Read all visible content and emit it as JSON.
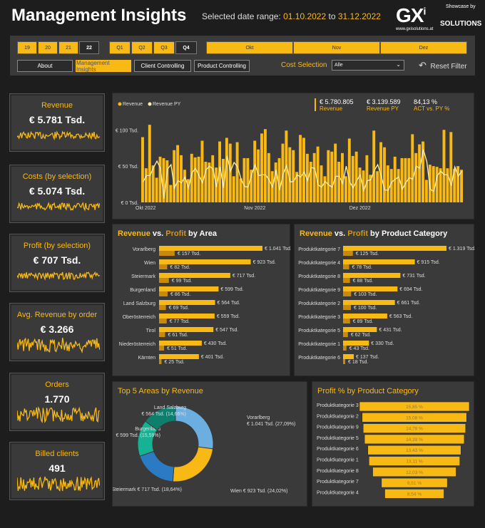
{
  "header": {
    "title": "Management Insights",
    "range_label": "Selected date range:",
    "range_from": "01.10.2022",
    "range_to_label": "to",
    "range_to": "31.12.2022",
    "logo_text": "GXi SOLUTIONS",
    "logo_showcase": "Showcase by",
    "logo_url": "www.gxisolutions.at"
  },
  "filters": {
    "years": [
      {
        "label": "19",
        "selected": false
      },
      {
        "label": "20",
        "selected": false
      },
      {
        "label": "21",
        "selected": false
      },
      {
        "label": "22",
        "selected": true
      }
    ],
    "quarters": [
      {
        "label": "Q1",
        "selected": false
      },
      {
        "label": "Q2",
        "selected": false
      },
      {
        "label": "Q3",
        "selected": false
      },
      {
        "label": "Q4",
        "selected": true
      }
    ],
    "months": [
      "Okt",
      "Nov",
      "Dez"
    ],
    "nav": [
      {
        "label": "About",
        "active": false
      },
      {
        "label": "Management Insights",
        "active": true
      },
      {
        "label": "Client Controlling",
        "active": false
      },
      {
        "label": "Product Controlling",
        "active": false
      }
    ],
    "cost_label": "Cost Selection",
    "cost_value": "Alle",
    "reset": "Reset Filter"
  },
  "kpis": [
    {
      "label": "Revenue",
      "value": "€ 5.781 Tsd."
    },
    {
      "label": "Costs (by selection)",
      "value": "€ 5.074 Tsd."
    },
    {
      "label": "Profit (by selection)",
      "value": "€ 707 Tsd."
    },
    {
      "label": "Avg. Revenue by order",
      "value": "€ 3.266"
    },
    {
      "label": "Orders",
      "value": "1.770"
    },
    {
      "label": "Billed clients",
      "value": "491"
    }
  ],
  "colors": {
    "accent": "#f9b915",
    "profit": "#c98a0c",
    "py_line": "#fff0b0",
    "panel": "#3a3a3a"
  },
  "chart_data": [
    {
      "type": "bar",
      "legend": [
        "Revenue",
        "Revenue PY"
      ],
      "kpis": [
        {
          "value": "€ 5.780.805",
          "label": "Revenue"
        },
        {
          "value": "€ 3.139.589",
          "label": "Revenue PY"
        },
        {
          "value": "84,13 %",
          "label": "ACT vs. PY %"
        }
      ],
      "y_ticks": [
        "€ 0 Tsd.",
        "€ 50 Tsd.",
        "€ 100 Tsd."
      ],
      "ylim": [
        0,
        115
      ],
      "x_ticks": [
        "Okt 2022",
        "Nov 2022",
        "Dez 2022"
      ],
      "series": [
        {
          "name": "Revenue",
          "values": [
            90,
            47,
            107,
            51,
            34,
            63,
            61,
            58,
            24,
            72,
            79,
            65,
            45,
            32,
            67,
            62,
            63,
            85,
            56,
            55,
            65,
            48,
            84,
            60,
            89,
            81,
            36,
            83,
            33,
            61,
            61,
            45,
            85,
            73,
            95,
            101,
            68,
            43,
            55,
            61,
            81,
            99,
            76,
            72,
            42,
            93,
            89,
            67,
            56,
            68,
            77,
            51,
            36,
            72,
            70,
            81,
            56,
            68,
            36,
            88,
            64,
            70,
            48,
            44,
            65,
            38,
            99,
            43,
            83,
            76,
            51,
            46,
            63,
            46,
            61,
            61,
            61,
            94,
            68,
            80,
            84,
            31,
            52,
            50,
            49,
            47,
            100,
            47,
            97,
            46,
            50,
            45
          ]
        },
        {
          "name": "Revenue PY",
          "values": [
            28,
            37,
            37,
            48,
            57,
            47,
            5,
            46,
            52,
            20,
            30,
            27,
            35,
            20,
            41,
            47,
            37,
            27,
            45,
            50,
            46,
            21,
            49,
            20,
            64,
            43,
            55,
            49,
            32,
            22,
            21,
            38,
            52,
            37,
            38,
            38,
            31,
            21,
            45,
            17,
            39,
            51,
            28,
            29,
            38,
            35,
            42,
            30,
            48,
            47,
            24,
            21,
            29,
            24,
            21,
            36,
            36,
            26,
            50,
            28,
            20,
            30,
            38,
            16,
            30,
            31,
            44,
            52,
            36,
            17,
            17,
            28,
            32,
            35,
            18,
            27,
            34,
            32,
            50,
            47,
            73,
            56,
            18,
            15,
            37,
            43,
            38,
            38,
            23,
            49,
            36,
            43
          ]
        }
      ]
    },
    {
      "type": "bar",
      "title": "Revenue vs. Profit by Area",
      "categories": [
        "Vorarlberg",
        "Wien",
        "Steiermark",
        "Burgenland",
        "Land Salzburg",
        "Oberösterreich",
        "Tirol",
        "Niederösterreich",
        "Kärnten"
      ],
      "series": [
        {
          "name": "Revenue",
          "values": [
            1041,
            923,
            717,
            599,
            564,
            559,
            547,
            430,
            401
          ],
          "labels": [
            "€ 1.041 Tsd.",
            "€ 923 Tsd.",
            "€ 717 Tsd.",
            "€ 599 Tsd.",
            "€ 564 Tsd.",
            "€ 559 Tsd.",
            "€ 547 Tsd.",
            "€ 430 Tsd.",
            "€ 401 Tsd."
          ]
        },
        {
          "name": "Profit",
          "values": [
            157,
            82,
            99,
            86,
            69,
            77,
            61,
            51,
            25
          ],
          "labels": [
            "€ 157 Tsd.",
            "€ 82 Tsd.",
            "€ 99 Tsd.",
            "€ 86 Tsd.",
            "€ 69 Tsd.",
            "€ 77 Tsd.",
            "€ 61 Tsd.",
            "€ 51 Tsd.",
            "€ 25 Tsd."
          ]
        }
      ]
    },
    {
      "type": "bar",
      "title": "Revenue vs. Profit by Product Category",
      "categories": [
        "Produktkategorie 7",
        "Produktkategorie 4",
        "Produktkategorie 8",
        "Produktkategorie 9",
        "Produktkategorie 2",
        "Produktkategorie 3",
        "Produktkategorie 5",
        "Produktkategorie 1",
        "Produktkategorie 6"
      ],
      "series": [
        {
          "name": "Revenue",
          "values": [
            1319,
            915,
            731,
            694,
            661,
            563,
            431,
            330,
            137
          ],
          "labels": [
            "€ 1.319 Tsd.",
            "€ 915 Tsd.",
            "€ 731 Tsd.",
            "€ 694 Tsd.",
            "€ 661 Tsd.",
            "€ 563 Tsd.",
            "€ 431 Tsd.",
            "€ 330 Tsd.",
            "€ 137 Tsd."
          ]
        },
        {
          "name": "Profit",
          "values": [
            125,
            78,
            88,
            103,
            100,
            89,
            62,
            43,
            18
          ],
          "labels": [
            "€ 125 Tsd.",
            "€ 78 Tsd.",
            "€ 88 Tsd.",
            "€ 103 Tsd.",
            "€ 100 Tsd.",
            "€ 89 Tsd.",
            "€ 62 Tsd.",
            "€ 43 Tsd.",
            "€ 18 Tsd."
          ]
        }
      ]
    },
    {
      "type": "pie",
      "title": "Top 5 Areas by Revenue",
      "slices": [
        {
          "name": "Vorarlberg",
          "value": 1041,
          "label": "€ 1.041 Tsd. (27,09%)",
          "color": "#6aafe0"
        },
        {
          "name": "Wien",
          "value": 923,
          "label": "€ 923 Tsd. (24,02%)",
          "color": "#f9b915"
        },
        {
          "name": "Steiermark",
          "value": 717,
          "label": "€ 717 Tsd. (18,64%)",
          "color": "#2b7bc4"
        },
        {
          "name": "Burgenland",
          "value": 599,
          "label": "€ 599 Tsd. (15,59%)",
          "color": "#16b294"
        },
        {
          "name": "Land Salzburg",
          "value": 564,
          "label": "€ 564 Tsd. (14,66%)",
          "color": "#0f7f6d"
        }
      ]
    },
    {
      "type": "bar",
      "title": "Profit % by Product Category",
      "categories": [
        "Produktkategorie 3",
        "Produktkategorie 2",
        "Produktkategorie 9",
        "Produktkategorie 5",
        "Produktkategorie 6",
        "Produktkategorie 1",
        "Produktkategorie 8",
        "Produktkategorie 7",
        "Produktkategorie 4"
      ],
      "values": [
        15.85,
        15.08,
        14.78,
        14.39,
        13.43,
        13.11,
        12.03,
        9.51,
        8.54
      ],
      "labels": [
        "15,85 %",
        "15,08 %",
        "14,78 %",
        "14,39 %",
        "13,43 %",
        "13,11 %",
        "12,03 %",
        "9,51 %",
        "8,54 %"
      ]
    }
  ]
}
